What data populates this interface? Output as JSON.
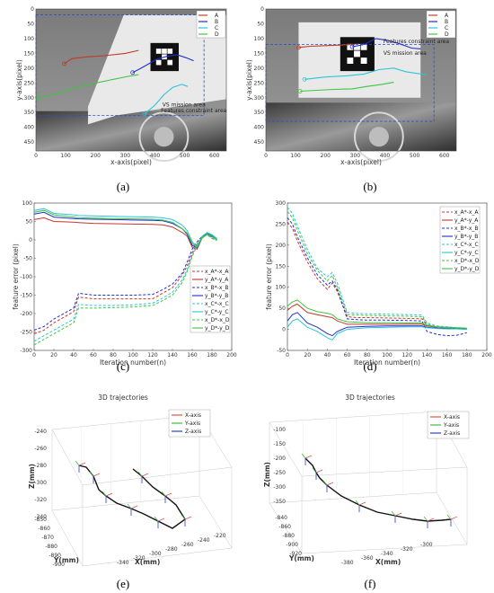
{
  "captions": [
    "(a)",
    "(b)",
    "(c)",
    "(d)",
    "(e)",
    "(f)"
  ],
  "chart_data": [
    {
      "id": "a",
      "type": "image-overlay-line",
      "xlabel": "x-axis(pixel)",
      "ylabel": "y-axis(pixel)",
      "xlim": [
        0,
        640
      ],
      "ylim": [
        480,
        0
      ],
      "xticks": [
        0,
        100,
        200,
        300,
        400,
        500,
        600
      ],
      "yticks": [
        0,
        50,
        100,
        150,
        200,
        250,
        300,
        350,
        400,
        450
      ],
      "legend": [
        "A",
        "B",
        "C",
        "D"
      ],
      "annotations": [
        "VS mission area",
        "Features constraint area"
      ],
      "series": [
        {
          "name": "A",
          "color": "#c0392b",
          "x": [
            95,
            120,
            170,
            230,
            300,
            345
          ],
          "y": [
            185,
            168,
            162,
            158,
            150,
            140
          ]
        },
        {
          "name": "B",
          "color": "#1f2fd0",
          "x": [
            325,
            350,
            380,
            405,
            440,
            475,
            505,
            530
          ],
          "y": [
            215,
            202,
            185,
            170,
            160,
            155,
            165,
            175
          ]
        },
        {
          "name": "C",
          "color": "#29c5d6",
          "x": [
            365,
            400,
            430,
            460,
            490,
            510
          ],
          "y": [
            355,
            325,
            290,
            265,
            255,
            262
          ]
        },
        {
          "name": "D",
          "color": "#3fc43f",
          "x": [
            5,
            60,
            120,
            180,
            250,
            310,
            345
          ],
          "y": [
            300,
            290,
            270,
            255,
            240,
            228,
            222
          ]
        }
      ]
    },
    {
      "id": "b",
      "type": "image-overlay-line",
      "xlabel": "x-axis(pixel)",
      "ylabel": "y-axis(pixel)",
      "xlim": [
        0,
        640
      ],
      "ylim": [
        480,
        0
      ],
      "xticks": [
        0,
        100,
        200,
        300,
        400,
        500,
        600
      ],
      "yticks": [
        0,
        50,
        100,
        150,
        200,
        250,
        300,
        350,
        400,
        450
      ],
      "legend": [
        "A",
        "B",
        "C",
        "D"
      ],
      "annotations": [
        "Features constraint area",
        "VS mission area"
      ],
      "series": [
        {
          "name": "A",
          "color": "#c0392b",
          "x": [
            110,
            150,
            200,
            250,
            300
          ],
          "y": [
            130,
            126,
            124,
            122,
            120
          ]
        },
        {
          "name": "B",
          "color": "#1f2fd0",
          "x": [
            290,
            330,
            370,
            410,
            450,
            490,
            520
          ],
          "y": [
            128,
            120,
            100,
            106,
            118,
            132,
            135
          ]
        },
        {
          "name": "C",
          "color": "#29c5d6",
          "x": [
            130,
            200,
            270,
            330,
            380,
            430,
            470,
            510,
            540
          ],
          "y": [
            238,
            230,
            226,
            220,
            205,
            200,
            212,
            218,
            222
          ]
        },
        {
          "name": "D",
          "color": "#3fc43f",
          "x": [
            115,
            170,
            230,
            290,
            340,
            390,
            430
          ],
          "y": [
            278,
            275,
            272,
            270,
            262,
            255,
            248
          ]
        }
      ]
    },
    {
      "id": "c",
      "type": "line",
      "xlabel": "Iteration number(n)",
      "ylabel": "feature error (pixel)",
      "xlim": [
        0,
        200
      ],
      "ylim": [
        -300,
        100
      ],
      "xticks": [
        0,
        20,
        40,
        60,
        80,
        100,
        120,
        140,
        160,
        180,
        200
      ],
      "yticks": [
        100,
        50,
        0,
        -50,
        -100,
        -150,
        -200,
        -250,
        -300
      ],
      "legend": [
        "x_A*-x_A",
        "y_A*-y_A",
        "x_B*-x_B",
        "y_B*-y_B",
        "x_C*-x_C",
        "y_C*-y_C",
        "x_D*-x_D",
        "y_D*-y_D"
      ],
      "x": [
        0,
        10,
        20,
        40,
        45,
        60,
        80,
        100,
        120,
        130,
        140,
        150,
        155,
        160,
        165,
        170,
        175,
        180,
        185
      ],
      "series": [
        {
          "name": "x_A*-x_A",
          "color": "#c0392b",
          "dash": true,
          "values": [
            -255,
            -245,
            -225,
            -195,
            -155,
            -160,
            -160,
            -160,
            -160,
            -145,
            -130,
            -95,
            -70,
            -35,
            -10,
            5,
            15,
            5,
            0
          ]
        },
        {
          "name": "y_A*-y_A",
          "color": "#c0392b",
          "dash": false,
          "values": [
            55,
            60,
            50,
            48,
            47,
            45,
            44,
            43,
            42,
            41,
            35,
            20,
            10,
            -20,
            -25,
            5,
            15,
            10,
            0
          ]
        },
        {
          "name": "x_B*-x_B",
          "color": "#1f2fd0",
          "dash": true,
          "values": [
            -245,
            -235,
            -215,
            -185,
            -145,
            -150,
            -150,
            -150,
            -148,
            -135,
            -120,
            -90,
            -60,
            -25,
            -5,
            10,
            18,
            8,
            2
          ]
        },
        {
          "name": "y_B*-y_B",
          "color": "#1f2fd0",
          "dash": false,
          "values": [
            70,
            75,
            62,
            58,
            57,
            56,
            55,
            54,
            53,
            52,
            45,
            30,
            15,
            -15,
            -22,
            8,
            18,
            12,
            2
          ]
        },
        {
          "name": "x_C*-x_C",
          "color": "#29c5d6",
          "dash": true,
          "values": [
            -275,
            -260,
            -245,
            -215,
            -175,
            -178,
            -178,
            -176,
            -172,
            -158,
            -142,
            -108,
            -80,
            -40,
            -12,
            8,
            16,
            6,
            0
          ]
        },
        {
          "name": "y_C*-y_C",
          "color": "#29c5d6",
          "dash": false,
          "values": [
            80,
            85,
            72,
            68,
            66,
            65,
            64,
            63,
            62,
            60,
            55,
            40,
            25,
            -5,
            -18,
            10,
            20,
            14,
            4
          ]
        },
        {
          "name": "x_D*-x_D",
          "color": "#3fc43f",
          "dash": true,
          "values": [
            -285,
            -270,
            -255,
            -225,
            -185,
            -185,
            -184,
            -182,
            -178,
            -165,
            -150,
            -115,
            -85,
            -45,
            -15,
            5,
            14,
            4,
            -2
          ]
        },
        {
          "name": "y_D*-y_D",
          "color": "#3fc43f",
          "dash": false,
          "values": [
            75,
            80,
            68,
            62,
            60,
            59,
            58,
            57,
            56,
            54,
            48,
            30,
            18,
            -10,
            -20,
            6,
            16,
            10,
            1
          ]
        }
      ]
    },
    {
      "id": "d",
      "type": "line",
      "xlabel": "Iteration number(n)",
      "ylabel": "feature error (pixel)",
      "xlim": [
        0,
        200
      ],
      "ylim": [
        -50,
        300
      ],
      "xticks": [
        0,
        20,
        40,
        60,
        80,
        100,
        120,
        140,
        160,
        180,
        200
      ],
      "yticks": [
        300,
        250,
        200,
        150,
        100,
        50,
        0,
        -50
      ],
      "legend": [
        "x_A*-x_A",
        "y_A*-y_A",
        "x_B*-x_B",
        "y_B*-y_B",
        "x_C*-x_C",
        "y_C*-y_C",
        "x_D*-x_D",
        "y_D*-y_D"
      ],
      "x": [
        0,
        5,
        10,
        20,
        30,
        40,
        45,
        50,
        60,
        70,
        80,
        100,
        120,
        135,
        140,
        150,
        160,
        170,
        180
      ],
      "series": [
        {
          "name": "x_A*-x_A",
          "color": "#c0392b",
          "dash": true,
          "values": [
            255,
            240,
            210,
            160,
            120,
            95,
            110,
            90,
            30,
            28,
            28,
            27,
            26,
            25,
            10,
            5,
            5,
            3,
            2
          ]
        },
        {
          "name": "y_A*-y_A",
          "color": "#c0392b",
          "dash": false,
          "values": [
            45,
            55,
            60,
            40,
            35,
            30,
            28,
            20,
            12,
            12,
            12,
            12,
            12,
            12,
            8,
            5,
            5,
            3,
            2
          ]
        },
        {
          "name": "x_B*-x_B",
          "color": "#1f2fd0",
          "dash": true,
          "values": [
            265,
            250,
            220,
            170,
            130,
            105,
            115,
            95,
            25,
            23,
            22,
            22,
            21,
            20,
            -5,
            -12,
            -15,
            -14,
            -8
          ]
        },
        {
          "name": "y_B*-y_B",
          "color": "#1f2fd0",
          "dash": false,
          "values": [
            20,
            35,
            40,
            15,
            5,
            -10,
            -15,
            -5,
            5,
            6,
            7,
            8,
            8,
            8,
            5,
            3,
            2,
            2,
            1
          ]
        },
        {
          "name": "x_C*-x_C",
          "color": "#29c5d6",
          "dash": true,
          "values": [
            290,
            275,
            245,
            190,
            145,
            125,
            135,
            110,
            40,
            38,
            37,
            36,
            35,
            34,
            15,
            8,
            6,
            4,
            3
          ]
        },
        {
          "name": "y_C*-y_C",
          "color": "#29c5d6",
          "dash": false,
          "values": [
            5,
            20,
            25,
            5,
            -5,
            -20,
            -25,
            -10,
            0,
            2,
            4,
            5,
            6,
            6,
            4,
            2,
            1,
            1,
            0
          ]
        },
        {
          "name": "x_D*-x_D",
          "color": "#3fc43f",
          "dash": true,
          "values": [
            280,
            265,
            235,
            180,
            140,
            115,
            128,
            100,
            35,
            34,
            33,
            32,
            31,
            30,
            12,
            6,
            5,
            3,
            2
          ]
        },
        {
          "name": "y_D*-y_D",
          "color": "#3fc43f",
          "dash": false,
          "values": [
            55,
            65,
            70,
            50,
            42,
            38,
            35,
            25,
            18,
            17,
            16,
            16,
            15,
            15,
            10,
            6,
            5,
            4,
            3
          ]
        }
      ]
    },
    {
      "id": "e",
      "type": "3d-trajectory",
      "title": "3D trajectories",
      "xlabel": "X(mm)",
      "ylabel": "Y(mm)",
      "zlabel": "Z(mm)",
      "xticks": [
        "-340",
        "-320",
        "-300",
        "-280",
        "-260",
        "-240",
        "-220"
      ],
      "yticks": [
        "-850",
        "-860",
        "-870",
        "-880",
        "-890",
        "-900"
      ],
      "zticks": [
        "-240",
        "-260",
        "-280",
        "-300",
        "-320",
        "-340"
      ],
      "legend": [
        "X-axis",
        "Y-axis",
        "Z-axis"
      ],
      "legend_colors": [
        "#d9534f",
        "#3fbf3f",
        "#2b3fd0"
      ]
    },
    {
      "id": "f",
      "type": "3d-trajectory",
      "title": "3D trajectories",
      "xlabel": "X(mm)",
      "ylabel": "Y(mm)",
      "zlabel": "Z(mm)",
      "xticks": [
        "-380",
        "-360",
        "-340",
        "-320",
        "-300"
      ],
      "yticks": [
        "-840",
        "-860",
        "-880",
        "-900",
        "-920"
      ],
      "zticks": [
        "-100",
        "-150",
        "-200",
        "-250",
        "-300",
        "-350"
      ],
      "legend": [
        "X-axis",
        "Y-axis",
        "Z-axis"
      ],
      "legend_colors": [
        "#d9534f",
        "#3fbf3f",
        "#2b3fd0"
      ]
    }
  ]
}
